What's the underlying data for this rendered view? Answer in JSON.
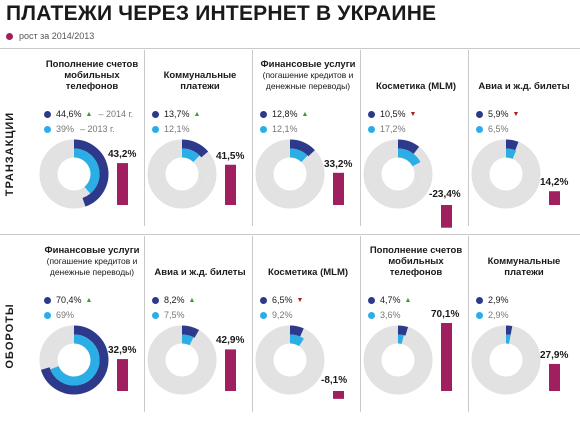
{
  "title": "ПЛАТЕЖИ ЧЕРЕЗ ИНТЕРНЕТ В УКРАИНЕ",
  "legend": "рост за 2014/2013",
  "colors": {
    "dark": "#2d3a8c",
    "light": "#2aaee5",
    "track": "#e2e2e2",
    "bar": "#a01f5e",
    "up": "#3a9a3a",
    "down": "#b02222"
  },
  "chart_data": [
    {
      "type": "donut-bar",
      "row_label": "ТРАНЗАКЦИИ",
      "series_labels": {
        "y2014": "– 2014 г.",
        "y2013": "– 2013 г."
      },
      "categories": [
        {
          "title": "Пополнение счетов мобильных телефонов",
          "subtitle": "",
          "v2014": 44.6,
          "v2014_label": "44,6%",
          "v2013": 39,
          "v2013_label": "39%",
          "growth": 43.2,
          "growth_label": "43,2%",
          "trend": "up"
        },
        {
          "title": "Коммунальные платежи",
          "subtitle": "",
          "v2014": 13.7,
          "v2014_label": "13,7%",
          "v2013": 12.1,
          "v2013_label": "12,1%",
          "growth": 41.5,
          "growth_label": "41,5%",
          "trend": "up"
        },
        {
          "title": "Финансовые услуги",
          "subtitle": "(погашение кредитов и денежные переводы)",
          "v2014": 12.8,
          "v2014_label": "12,8%",
          "v2013": 12.1,
          "v2013_label": "12,1%",
          "growth": 33.2,
          "growth_label": "33,2%",
          "trend": "up"
        },
        {
          "title": "Косметика (MLM)",
          "subtitle": "",
          "v2014": 10.5,
          "v2014_label": "10,5%",
          "v2013": 17.2,
          "v2013_label": "17,2%",
          "growth": -23.4,
          "growth_label": "-23,4%",
          "trend": "down"
        },
        {
          "title": "Авиа и ж.д. билеты",
          "subtitle": "",
          "v2014": 5.9,
          "v2014_label": "5,9%",
          "v2013": 6.5,
          "v2013_label": "6,5%",
          "growth": 14.2,
          "growth_label": "14,2%",
          "trend": "down"
        }
      ]
    },
    {
      "type": "donut-bar",
      "row_label": "ОБОРОТЫ",
      "categories": [
        {
          "title": "Финансовые услуги",
          "subtitle": "(погашение кредитов и денежные переводы)",
          "v2014": 70.4,
          "v2014_label": "70,4%",
          "v2013": 69,
          "v2013_label": "69%",
          "growth": 32.9,
          "growth_label": "32,9%",
          "trend": "up"
        },
        {
          "title": "Авиа и ж.д. билеты",
          "subtitle": "",
          "v2014": 8.2,
          "v2014_label": "8,2%",
          "v2013": 7.5,
          "v2013_label": "7,5%",
          "growth": 42.9,
          "growth_label": "42,9%",
          "trend": "up"
        },
        {
          "title": "Косметика (MLM)",
          "subtitle": "",
          "v2014": 6.5,
          "v2014_label": "6,5%",
          "v2013": 9.2,
          "v2013_label": "9,2%",
          "growth": -8.1,
          "growth_label": "-8,1%",
          "trend": "down"
        },
        {
          "title": "Пополнение счетов мобильных телефонов",
          "subtitle": "",
          "v2014": 4.7,
          "v2014_label": "4,7%",
          "v2013": 3.6,
          "v2013_label": "3,6%",
          "growth": 70.1,
          "growth_label": "70,1%",
          "trend": "up"
        },
        {
          "title": "Коммунальные платежи",
          "subtitle": "",
          "v2014": 2.9,
          "v2014_label": "2,9%",
          "v2013": 2.9,
          "v2013_label": "2,9%",
          "growth": 27.9,
          "growth_label": "27,9%",
          "trend": "none"
        }
      ]
    }
  ]
}
